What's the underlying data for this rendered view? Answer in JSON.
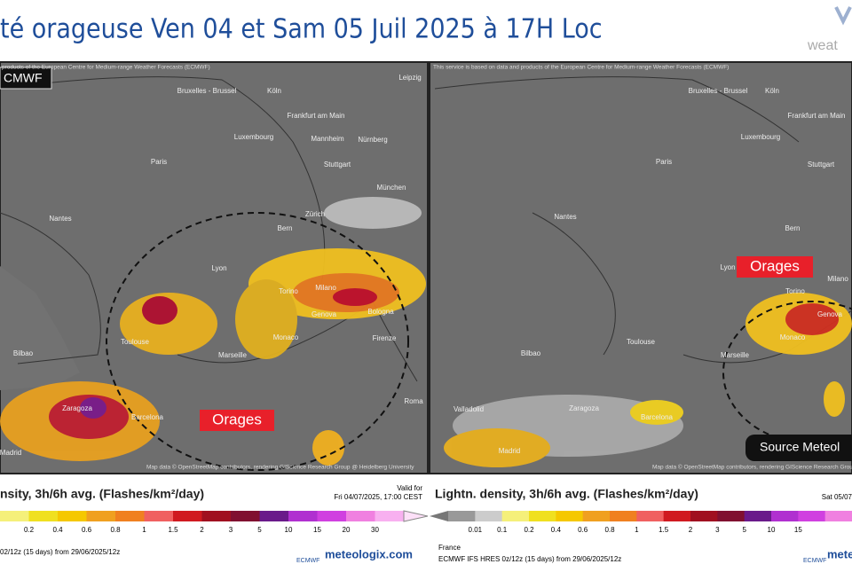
{
  "header": {
    "title": "té orageuse Ven 04 et Sam 05 Juil 2025 à 17H Loc",
    "logo": "weat"
  },
  "left_map": {
    "label": "CMWF",
    "credit_top": "products of the European Centre for Medium-range Weather Forecasts (ECMWF)",
    "credit_bottom": "Map data © OpenStreetMap contributors, rendering GIScience Research Group @ Heidelberg University",
    "annotation": "Orages",
    "cities": [
      "Bruxelles - Brussel",
      "Köln",
      "Leipzig",
      "Frankfurt am Main",
      "Luxembourg",
      "Mannheim",
      "Nürnberg",
      "Paris",
      "Stuttgart",
      "München",
      "Nantes",
      "Zürich",
      "Bern",
      "Lyon",
      "Milano",
      "Torino",
      "Genova",
      "Bologna",
      "Firenze",
      "Monaco",
      "Marseille",
      "Toulouse",
      "Bilbao",
      "Zaragoza",
      "Barcelona",
      "Madrid",
      "Roma"
    ]
  },
  "right_map": {
    "credit_top": "This service is based on data and products of the European Centre for Medium-range Weather Forecasts (ECMWF)",
    "credit_bottom": "Map data © OpenStreetMap contributors, rendering GIScience Research Group @ Heidelberg University",
    "annotation": "Orages",
    "source": "Source Meteol",
    "cities": [
      "Bruxelles - Brussel",
      "Köln",
      "Frankfurt am Main",
      "Luxembourg",
      "Paris",
      "Stuttgart",
      "Nantes",
      "Bern",
      "Lyon",
      "Torino",
      "Milano",
      "Genova",
      "Monaco",
      "Marseille",
      "Toulouse",
      "Bilbao",
      "Valladolid",
      "Zaragoza",
      "Barcelona",
      "Madrid"
    ]
  },
  "left_legend": {
    "title": "nsity, 3h/6h avg. (Flashes/km²/day)",
    "valid": "Valid for",
    "date": "Fri 04/07/2025, 17:00 CEST",
    "ticks": [
      "0.2",
      "0.4",
      "0.6",
      "0.8",
      "1",
      "1.5",
      "2",
      "3",
      "5",
      "10",
      "15",
      "20",
      "30"
    ],
    "footer": "02/12z (15 days) from 29/06/2025/12z",
    "brand1": "ECMWF",
    "brand2": "meteologix.com"
  },
  "right_legend": {
    "title": "Lightn. density, 3h/6h avg. (Flashes/km²/day)",
    "date": "Sat 05/07",
    "ticks": [
      "0.01",
      "0.1",
      "0.2",
      "0.4",
      "0.6",
      "0.8",
      "1",
      "1.5",
      "2",
      "3",
      "5",
      "10",
      "15"
    ],
    "region": "France",
    "footer": "ECMWF IFS HRES 0z/12z (15 days) from 29/06/2025/12z",
    "brand1": "ECMWF",
    "brand2": "meteologix.com"
  }
}
